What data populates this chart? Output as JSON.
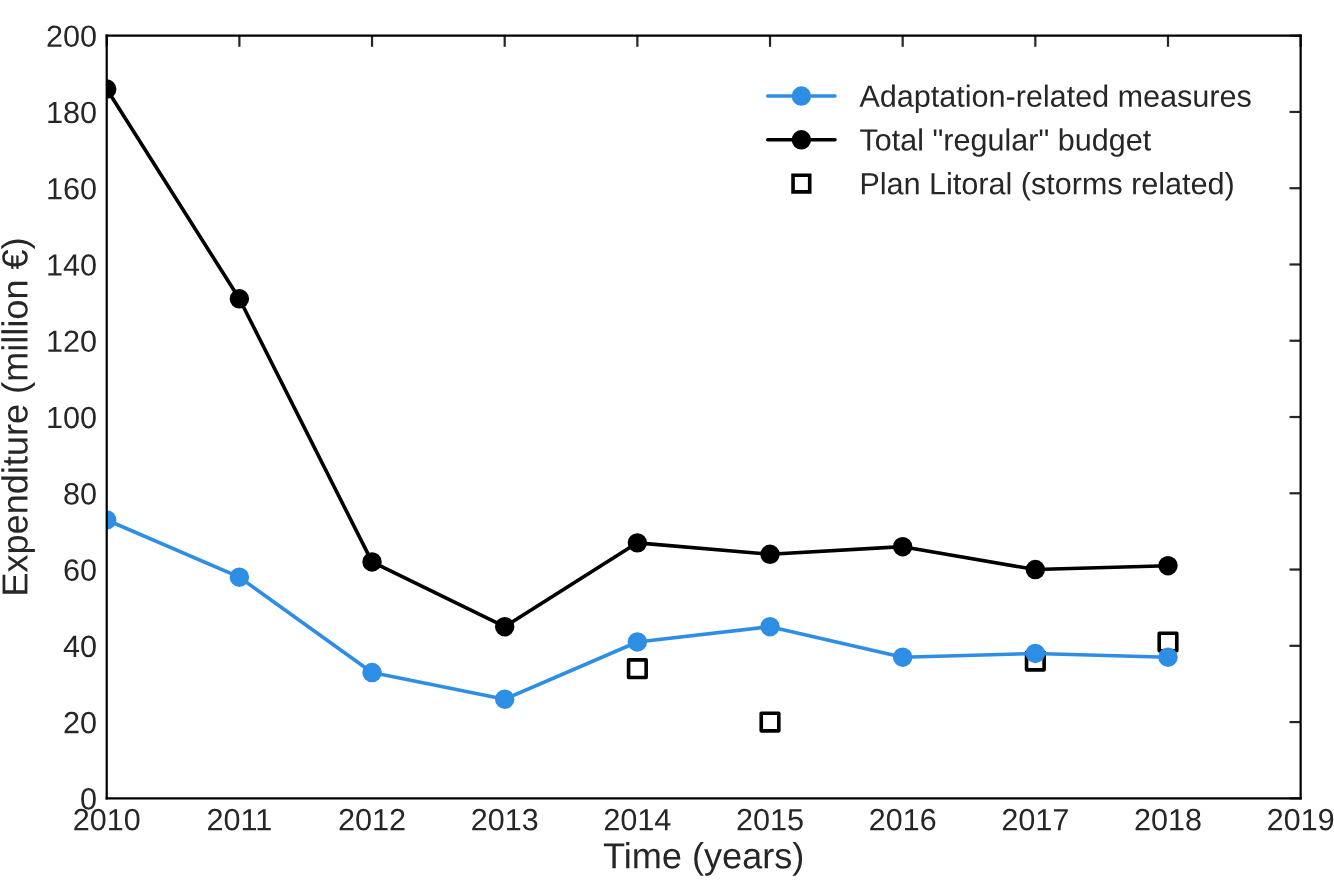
{
  "chart_data": {
    "type": "line",
    "xlabel": "Time (years)",
    "ylabel": "Expenditure (million €)",
    "x": [
      2010,
      2011,
      2012,
      2013,
      2014,
      2015,
      2016,
      2017,
      2018
    ],
    "series": [
      {
        "name": "Adaptation-related measures",
        "color": "#2e8ee6",
        "marker": "circle",
        "values": [
          73,
          58,
          33,
          26,
          41,
          45,
          37,
          38,
          37
        ]
      },
      {
        "name": "Total \"regular\" budget",
        "color": "#000000",
        "marker": "circle",
        "values": [
          186,
          131,
          62,
          45,
          67,
          64,
          66,
          60,
          61
        ]
      },
      {
        "name": "Plan Litoral (storms related)",
        "type": "scatter",
        "color": "#000000",
        "marker": "square",
        "x": [
          2014,
          2015,
          2017,
          2018
        ],
        "values": [
          34,
          20,
          36,
          41
        ]
      }
    ],
    "xlim": [
      2010,
      2019
    ],
    "xticks": [
      2010,
      2011,
      2012,
      2013,
      2014,
      2015,
      2016,
      2017,
      2018,
      2019
    ],
    "ylim": [
      0,
      200
    ],
    "yticks": [
      0,
      20,
      40,
      60,
      80,
      100,
      120,
      140,
      160,
      180,
      200
    ],
    "grid": false,
    "legend": "top right"
  }
}
